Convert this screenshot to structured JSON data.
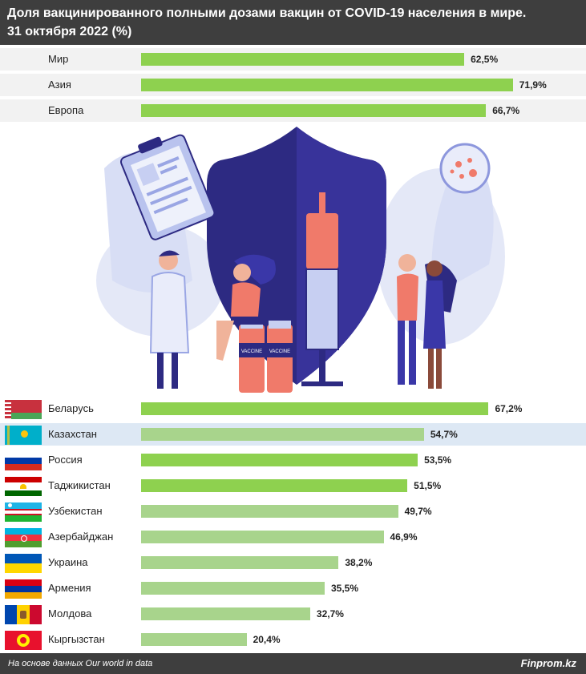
{
  "title_line1": "Доля вакцинированного полными дозами вакцин от COVID-19 населения в мире.",
  "title_line2": "31 октября 2022 (%)",
  "colors": {
    "highlight": "#8ed14f",
    "normal": "#a8d48c",
    "header_bg": "#3e3e3e",
    "selected_row": "#dde8f4",
    "alt_row": "#f2f2f2"
  },
  "illustration": {
    "vaccine_label": "VACCINE"
  },
  "chart_data": [
    {
      "type": "bar",
      "orientation": "horizontal",
      "categories": [
        "Мир",
        "Азия",
        "Европа"
      ],
      "values": [
        62.5,
        71.9,
        66.7
      ],
      "value_labels": [
        "62,5%",
        "71,9%",
        "66,7%"
      ],
      "xlim": [
        0,
        100
      ]
    },
    {
      "type": "bar",
      "orientation": "horizontal",
      "categories": [
        "Беларусь",
        "Казахстан",
        "Россия",
        "Таджикистан",
        "Узбекистан",
        "Азербайджан",
        "Украина",
        "Армения",
        "Молдова",
        "Кыргызстан"
      ],
      "values": [
        67.2,
        54.7,
        53.5,
        51.5,
        49.7,
        46.9,
        38.2,
        35.5,
        32.7,
        20.4
      ],
      "value_labels": [
        "67,2%",
        "54,7%",
        "53,5%",
        "51,5%",
        "49,7%",
        "46,9%",
        "38,2%",
        "35,5%",
        "32,7%",
        "20,4%"
      ],
      "flags": [
        "belarus-flag",
        "kazakhstan-flag",
        "russia-flag",
        "tajikistan-flag",
        "uzbekistan-flag",
        "azerbaijan-flag",
        "ukraine-flag",
        "armenia-flag",
        "moldova-flag",
        "kyrgyzstan-flag"
      ],
      "highlighted": [
        true,
        false,
        true,
        true,
        false,
        false,
        false,
        false,
        false,
        false
      ],
      "xlim": [
        0,
        100
      ]
    }
  ],
  "footer": {
    "source": "На основе данных Our world in data",
    "brand": "Finprom.kz"
  }
}
